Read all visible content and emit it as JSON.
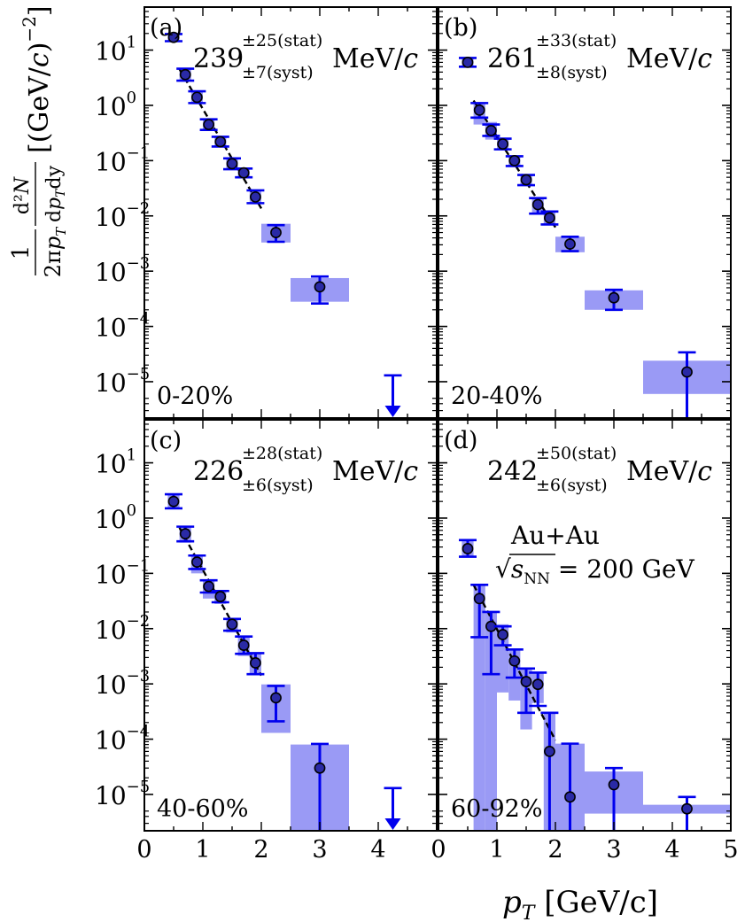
{
  "chart_data": [
    {
      "type": "scatter",
      "panel_label": "(a)",
      "centrality": "0-20%",
      "temperature": {
        "value": "239",
        "stat": "±25(stat)",
        "syst": "±7(syst)",
        "unit": "MeV/c"
      },
      "points": [
        {
          "pt": 0.5,
          "y": 17,
          "stat": [
            14.5,
            19.5
          ],
          "syst": [
            14.5,
            19.5
          ],
          "bin": [
            0.4,
            0.6
          ]
        },
        {
          "pt": 0.7,
          "y": 3.6,
          "stat": [
            2.8,
            4.6
          ],
          "syst": [
            2.8,
            4.5
          ],
          "bin": [
            0.6,
            0.8
          ]
        },
        {
          "pt": 0.9,
          "y": 1.4,
          "stat": [
            1.1,
            1.8
          ],
          "syst": [
            1.1,
            1.8
          ],
          "bin": [
            0.8,
            1.0
          ]
        },
        {
          "pt": 1.1,
          "y": 0.45,
          "stat": [
            0.36,
            0.56
          ],
          "syst": [
            0.36,
            0.56
          ],
          "bin": [
            1.0,
            1.2
          ]
        },
        {
          "pt": 1.3,
          "y": 0.22,
          "stat": [
            0.18,
            0.27
          ],
          "syst": [
            0.18,
            0.27
          ],
          "bin": [
            1.2,
            1.4
          ]
        },
        {
          "pt": 1.5,
          "y": 0.088,
          "stat": [
            0.07,
            0.11
          ],
          "syst": [
            0.07,
            0.11
          ],
          "bin": [
            1.4,
            1.6
          ]
        },
        {
          "pt": 1.7,
          "y": 0.06,
          "stat": [
            0.05,
            0.072
          ],
          "syst": [
            0.05,
            0.072
          ],
          "bin": [
            1.6,
            1.8
          ]
        },
        {
          "pt": 1.9,
          "y": 0.022,
          "stat": [
            0.017,
            0.029
          ],
          "syst": [
            0.017,
            0.029
          ],
          "bin": [
            1.8,
            2.0
          ]
        },
        {
          "pt": 2.25,
          "y": 0.005,
          "stat": [
            0.0034,
            0.0068
          ],
          "syst": [
            0.0033,
            0.0072
          ],
          "bin": [
            2.0,
            2.5
          ]
        },
        {
          "pt": 3.0,
          "y": 0.00052,
          "stat": [
            0.00026,
            0.0008
          ],
          "syst": [
            0.00028,
            0.00075
          ],
          "bin": [
            2.5,
            3.5
          ]
        }
      ],
      "upper_limit": {
        "pt": 4.25,
        "y": 1.3e-05
      },
      "fit": {
        "pt_range": [
          0.6,
          2.0
        ]
      }
    },
    {
      "type": "scatter",
      "panel_label": "(b)",
      "centrality": "20-40%",
      "temperature": {
        "value": "261",
        "stat": "±33(stat)",
        "syst": "±8(syst)",
        "unit": "MeV/c"
      },
      "points": [
        {
          "pt": 0.5,
          "y": 6,
          "stat": [
            5,
            7.2
          ],
          "syst": [
            5,
            7.2
          ],
          "bin": [
            0.4,
            0.6
          ]
        },
        {
          "pt": 0.7,
          "y": 0.82,
          "stat": [
            0.6,
            1.1
          ],
          "syst": [
            0.45,
            1.05
          ],
          "bin": [
            0.6,
            0.8
          ]
        },
        {
          "pt": 0.9,
          "y": 0.35,
          "stat": [
            0.28,
            0.45
          ],
          "syst": [
            0.24,
            0.5
          ],
          "bin": [
            0.8,
            1.0
          ]
        },
        {
          "pt": 1.1,
          "y": 0.2,
          "stat": [
            0.16,
            0.25
          ],
          "syst": [
            0.16,
            0.25
          ],
          "bin": [
            1.0,
            1.2
          ]
        },
        {
          "pt": 1.3,
          "y": 0.1,
          "stat": [
            0.08,
            0.12
          ],
          "syst": [
            0.08,
            0.12
          ],
          "bin": [
            1.2,
            1.4
          ]
        },
        {
          "pt": 1.5,
          "y": 0.045,
          "stat": [
            0.036,
            0.055
          ],
          "syst": [
            0.036,
            0.055
          ],
          "bin": [
            1.4,
            1.6
          ]
        },
        {
          "pt": 1.7,
          "y": 0.016,
          "stat": [
            0.011,
            0.021
          ],
          "syst": [
            0.011,
            0.021
          ],
          "bin": [
            1.6,
            1.8
          ]
        },
        {
          "pt": 1.9,
          "y": 0.0092,
          "stat": [
            0.007,
            0.012
          ],
          "syst": [
            0.007,
            0.012
          ],
          "bin": [
            1.8,
            2.0
          ]
        },
        {
          "pt": 2.25,
          "y": 0.0031,
          "stat": [
            0.0023,
            0.0042
          ],
          "syst": [
            0.0022,
            0.0042
          ],
          "bin": [
            2.0,
            2.5
          ]
        },
        {
          "pt": 3.0,
          "y": 0.00033,
          "stat": [
            0.0002,
            0.00046
          ],
          "syst": [
            0.0002,
            0.00045
          ],
          "bin": [
            2.5,
            3.5
          ]
        },
        {
          "pt": 4.25,
          "y": 1.5e-05,
          "stat": [
            1.5e-06,
            3.4e-05
          ],
          "syst": [
            6e-06,
            2.4e-05
          ],
          "bin": [
            3.5,
            5.0
          ]
        }
      ],
      "fit": {
        "pt_range": [
          0.6,
          2.0
        ]
      }
    },
    {
      "type": "scatter",
      "panel_label": "(c)",
      "centrality": "40-60%",
      "temperature": {
        "value": "226",
        "stat": "±28(stat)",
        "syst": "±6(syst)",
        "unit": "MeV/c"
      },
      "points": [
        {
          "pt": 0.5,
          "y": 2.0,
          "stat": [
            1.5,
            2.7
          ],
          "syst": [
            1.5,
            2.7
          ],
          "bin": [
            0.4,
            0.6
          ]
        },
        {
          "pt": 0.7,
          "y": 0.52,
          "stat": [
            0.38,
            0.7
          ],
          "syst": [
            0.36,
            0.7
          ],
          "bin": [
            0.6,
            0.8
          ]
        },
        {
          "pt": 0.9,
          "y": 0.16,
          "stat": [
            0.12,
            0.21
          ],
          "syst": [
            0.1,
            0.22
          ],
          "bin": [
            0.8,
            1.0
          ]
        },
        {
          "pt": 1.1,
          "y": 0.058,
          "stat": [
            0.045,
            0.075
          ],
          "syst": [
            0.035,
            0.075
          ],
          "bin": [
            1.0,
            1.2
          ]
        },
        {
          "pt": 1.3,
          "y": 0.038,
          "stat": [
            0.03,
            0.048
          ],
          "syst": [
            0.028,
            0.048
          ],
          "bin": [
            1.2,
            1.4
          ]
        },
        {
          "pt": 1.5,
          "y": 0.012,
          "stat": [
            0.0092,
            0.015
          ],
          "syst": [
            0.0085,
            0.015
          ],
          "bin": [
            1.4,
            1.6
          ]
        },
        {
          "pt": 1.7,
          "y": 0.005,
          "stat": [
            0.0035,
            0.0072
          ],
          "syst": [
            0.0032,
            0.0072
          ],
          "bin": [
            1.6,
            1.8
          ]
        },
        {
          "pt": 1.9,
          "y": 0.0024,
          "stat": [
            0.0015,
            0.0036
          ],
          "syst": [
            0.0015,
            0.0036
          ],
          "bin": [
            1.8,
            2.0
          ]
        },
        {
          "pt": 2.25,
          "y": 0.00056,
          "stat": [
            0.00021,
            0.00092
          ],
          "syst": [
            0.00013,
            0.00098
          ],
          "bin": [
            2.0,
            2.5
          ]
        },
        {
          "pt": 3.0,
          "y": 3e-05,
          "stat": [
            2.2e-06,
            8.2e-05
          ],
          "syst": [
            2.2e-06,
            8e-05
          ],
          "bin": [
            2.5,
            3.5
          ]
        }
      ],
      "upper_limit": {
        "pt": 4.25,
        "y": 1.3e-05
      },
      "fit": {
        "pt_range": [
          0.6,
          2.0
        ]
      }
    },
    {
      "type": "scatter",
      "panel_label": "(d)",
      "centrality": "60-92%",
      "temperature": {
        "value": "242",
        "stat": "±50(stat)",
        "syst": "±6(syst)",
        "unit": "MeV/c"
      },
      "system": {
        "collision": "Au+Au",
        "sqrt_s": "√s",
        "sub": "NN",
        "energy": "= 200 GeV"
      },
      "points": [
        {
          "pt": 0.5,
          "y": 0.28,
          "stat": [
            0.2,
            0.4
          ],
          "syst": [
            0.2,
            0.4
          ],
          "bin": [
            0.4,
            0.6
          ]
        },
        {
          "pt": 0.7,
          "y": 0.035,
          "stat": [
            0.007,
            0.062
          ],
          "syst": [
            2.2e-06,
            0.065
          ],
          "bin": [
            0.6,
            0.8
          ]
        },
        {
          "pt": 0.9,
          "y": 0.011,
          "stat": [
            0.0015,
            0.02
          ],
          "syst": [
            2.2e-06,
            0.02
          ],
          "bin": [
            0.8,
            1.0
          ]
        },
        {
          "pt": 1.1,
          "y": 0.0078,
          "stat": [
            0.005,
            0.011
          ],
          "syst": [
            0.0007,
            0.012
          ],
          "bin": [
            1.0,
            1.2
          ]
        },
        {
          "pt": 1.3,
          "y": 0.0026,
          "stat": [
            0.0013,
            0.0042
          ],
          "syst": [
            0.0005,
            0.0042
          ],
          "bin": [
            1.2,
            1.4
          ]
        },
        {
          "pt": 1.5,
          "y": 0.0011,
          "stat": [
            0.0003,
            0.0019
          ],
          "syst": [
            0.00015,
            0.0019
          ],
          "bin": [
            1.4,
            1.6
          ]
        },
        {
          "pt": 1.7,
          "y": 0.00098,
          "stat": [
            0.0004,
            0.0016
          ],
          "syst": [
            0.00045,
            0.0016
          ],
          "bin": [
            1.6,
            1.8
          ]
        },
        {
          "pt": 1.9,
          "y": 6e-05,
          "stat": [
            2.2e-06,
            0.0003
          ],
          "syst": [
            2.2e-06,
            0.0003
          ],
          "bin": [
            1.8,
            2.0
          ]
        },
        {
          "pt": 2.25,
          "y": 9e-06,
          "stat": [
            2.2e-06,
            8.3e-05
          ],
          "syst": [
            2.2e-06,
            8.3e-05
          ],
          "bin": [
            2.0,
            2.5
          ]
        },
        {
          "pt": 3.0,
          "y": 1.5e-05,
          "stat": [
            2.2e-06,
            3e-05
          ],
          "syst": [
            4.5e-06,
            2.6e-05
          ],
          "bin": [
            2.5,
            3.5
          ]
        },
        {
          "pt": 4.25,
          "y": 5.5e-06,
          "stat": [
            2.2e-06,
            9e-06
          ],
          "syst": [
            4.5e-06,
            6.5e-06
          ],
          "bin": [
            3.5,
            5.0
          ]
        }
      ],
      "fit": {
        "pt_range": [
          0.6,
          2.0
        ]
      }
    }
  ],
  "axes": {
    "x_range": [
      0,
      5
    ],
    "y_range": [
      2.2e-06,
      60
    ],
    "y_scale": "log",
    "y_ticks": [
      {
        "label": "10",
        "exp": "1"
      },
      {
        "label": "10",
        "exp": "0"
      },
      {
        "label": "10",
        "exp": "−1"
      },
      {
        "label": "10",
        "exp": "−2"
      },
      {
        "label": "10",
        "exp": "−3"
      },
      {
        "label": "10",
        "exp": "−4"
      },
      {
        "label": "10",
        "exp": "−5"
      }
    ],
    "x_ticks": [
      "0",
      "1",
      "2",
      "3",
      "4",
      "5"
    ],
    "xlabel": {
      "var": "p",
      "sub": "T",
      "unit": " [GeV/c]"
    },
    "ylabel": "1/(2πp_T) d²N/(dp_T dy) [(GeV/c)^−2]"
  },
  "colors": {
    "marker": "#1a1acc",
    "marker_fill": "#2a2aa6",
    "errorbar": "#0000ee",
    "syst_band": "#9a9af5",
    "fit": "#000000"
  }
}
